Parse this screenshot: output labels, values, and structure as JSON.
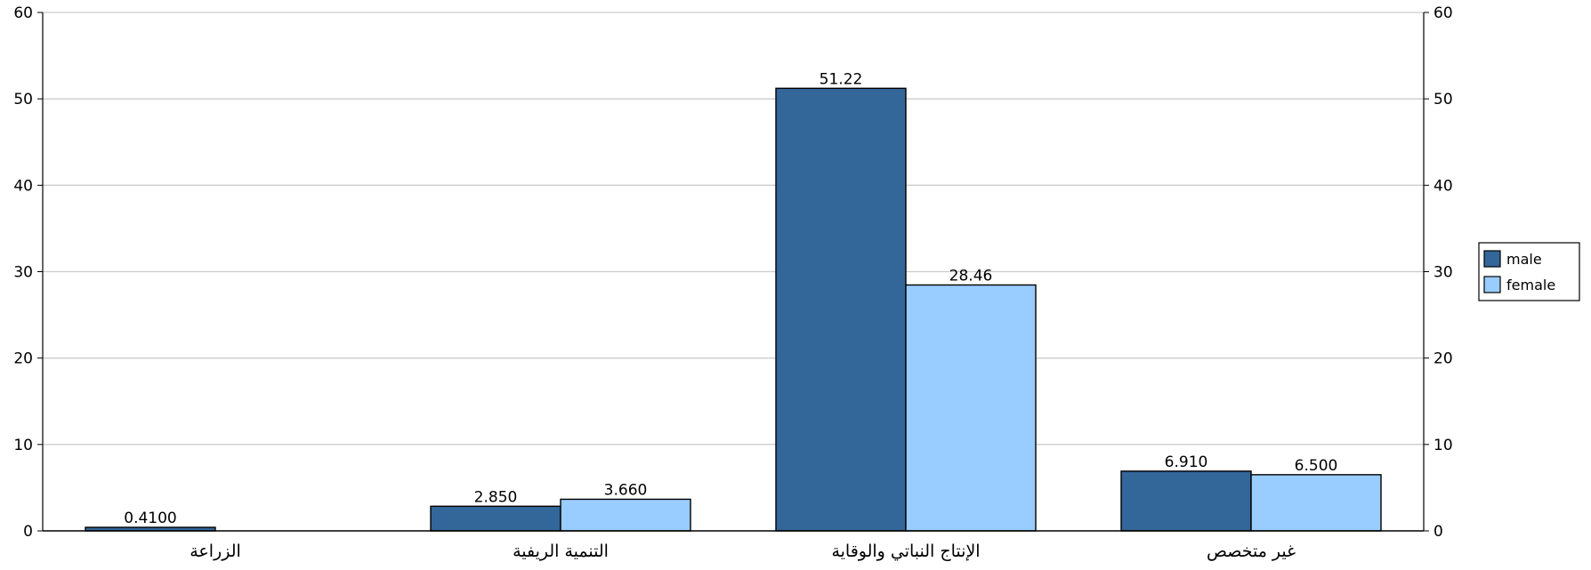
{
  "chart_data": {
    "type": "bar",
    "categories": [
      "الزراعة",
      "التنمية الريفية",
      "الإنتاج النباتي والوقاية",
      "غير متخصص"
    ],
    "series": [
      {
        "name": "male",
        "values": [
          0.41,
          2.85,
          51.22,
          6.91
        ],
        "labels": [
          "0.4100",
          "2.850",
          "51.22",
          "6.910"
        ],
        "color": "#336699"
      },
      {
        "name": "female",
        "values": [
          null,
          3.66,
          28.46,
          6.5
        ],
        "labels": [
          "",
          "3.660",
          "28.46",
          "6.500"
        ],
        "color": "#99ccff"
      }
    ],
    "ylim": [
      0,
      60
    ],
    "yticks": [
      "0",
      "10",
      "20",
      "30",
      "40",
      "50",
      "60"
    ],
    "title": "",
    "xlabel": "",
    "ylabel": "",
    "grid": true,
    "legend_position": "right",
    "right_axis": true
  }
}
